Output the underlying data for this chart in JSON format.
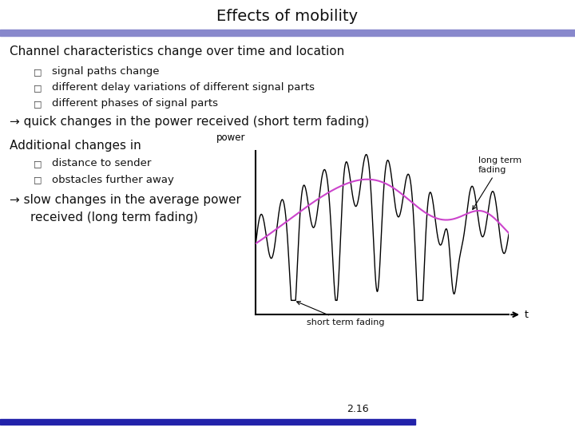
{
  "title": "Effects of mobility",
  "title_fontsize": 14,
  "bg_color": "#ffffff",
  "header_bar_color": "#8888cc",
  "footer_bar_color": "#2222aa",
  "section1_heading": "Channel characteristics change over time and location",
  "bullets1": [
    "signal paths change",
    "different delay variations of different signal parts",
    "different phases of signal parts"
  ],
  "arrow1": "→ quick changes in the power received (short term fading)",
  "section2_heading": "Additional changes in",
  "bullets2": [
    "distance to sender",
    "obstacles further away"
  ],
  "arrow2_line1": "→ slow changes in the average power",
  "arrow2_line2": "received (long term fading)",
  "graph_xlabel": "t",
  "graph_ylabel": "power",
  "graph_label_short": "short term fading",
  "graph_label_long": "long term\nfading",
  "short_term_color": "#000000",
  "long_term_color": "#cc44cc",
  "page_number": "2.16",
  "font_family": "Comic Sans MS",
  "text_fontsize": 10,
  "heading_fontsize": 11,
  "bullet_fontsize": 9.5
}
